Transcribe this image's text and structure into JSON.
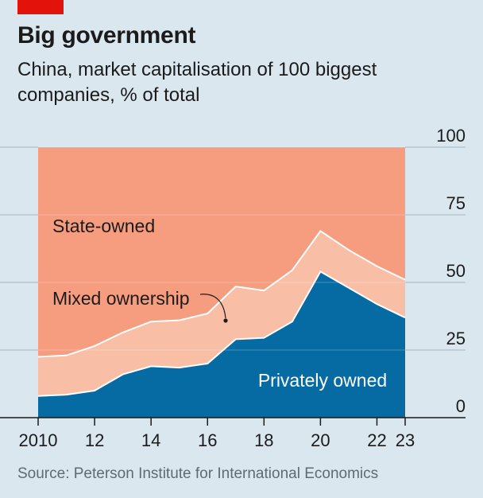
{
  "header": {
    "title": "Big government",
    "subtitle": "China, market capitalisation of 100 biggest companies, % of total"
  },
  "source": "Source: Peterson Institute for International Economics",
  "colors": {
    "state": "#f59d7e",
    "mixed": "#f8bfa6",
    "private": "#066ba2",
    "background": "#dbe7ef"
  },
  "chart_data": {
    "type": "area",
    "stacked": true,
    "x": [
      2010,
      2011,
      2012,
      2013,
      2014,
      2015,
      2016,
      2017,
      2018,
      2019,
      2020,
      2021,
      2022,
      2023
    ],
    "x_tick_labels": [
      {
        "x": 2010,
        "label": "2010"
      },
      {
        "x": 2012,
        "label": "12"
      },
      {
        "x": 2014,
        "label": "14"
      },
      {
        "x": 2016,
        "label": "16"
      },
      {
        "x": 2018,
        "label": "18"
      },
      {
        "x": 2020,
        "label": "20"
      },
      {
        "x": 2022,
        "label": "22"
      },
      {
        "x": 2023,
        "label": "23"
      }
    ],
    "y_ticks": [
      0,
      25,
      50,
      75,
      100
    ],
    "ylim": [
      0,
      100
    ],
    "series": [
      {
        "name": "Privately owned",
        "values": [
          8,
          8.5,
          10,
          16,
          19,
          18.5,
          20,
          29,
          29.5,
          35.5,
          54,
          48,
          42,
          37
        ]
      },
      {
        "name": "Mixed ownership",
        "values": [
          14.5,
          14.5,
          16.5,
          15.5,
          16.5,
          17.5,
          18.5,
          19.5,
          17.5,
          19,
          15,
          14,
          14,
          14
        ]
      },
      {
        "name": "State-owned",
        "values": [
          77.5,
          77,
          73.5,
          68.5,
          64.5,
          64,
          61.5,
          51.5,
          53,
          45.5,
          31,
          38,
          44,
          49
        ]
      }
    ],
    "grid": true,
    "y_axis_side": "right"
  }
}
